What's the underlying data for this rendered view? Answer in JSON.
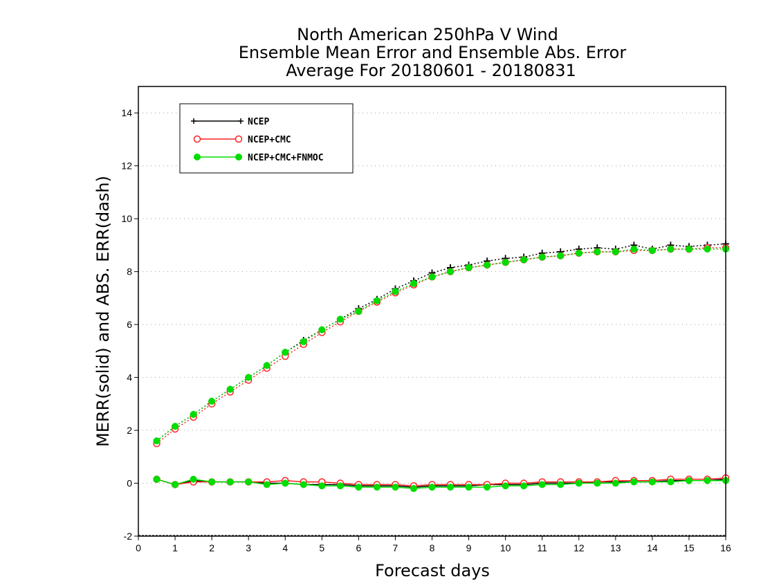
{
  "chart_data": {
    "type": "line",
    "title": [
      "North American 250hPa V Wind",
      "Ensemble Mean Error and Ensemble Abs. Error",
      "Average For 20180601 - 20180831"
    ],
    "xlabel": "Forecast days",
    "ylabel": "MERR(solid) and ABS. ERR(dash)",
    "xlim": [
      0,
      16
    ],
    "ylim": [
      -2,
      15
    ],
    "xticks": [
      "0",
      "1",
      "2",
      "3",
      "4",
      "5",
      "6",
      "7",
      "8",
      "9",
      "10",
      "11",
      "12",
      "13",
      "14",
      "15",
      "16"
    ],
    "yticks": [
      "-2",
      "0",
      "2",
      "4",
      "6",
      "8",
      "10",
      "12",
      "14"
    ],
    "grid": true,
    "legend_position": "top-left",
    "x": [
      0.5,
      1,
      1.5,
      2,
      2.5,
      3,
      3.5,
      4,
      4.5,
      5,
      5.5,
      6,
      6.5,
      7,
      7.5,
      8,
      8.5,
      9,
      9.5,
      10,
      10.5,
      11,
      11.5,
      12,
      12.5,
      13,
      13.5,
      14,
      14.5,
      15,
      15.5,
      16
    ],
    "series": [
      {
        "name": "NCEP",
        "color": "#000000",
        "marker": "plus",
        "abs_error": [
          1.6,
          2.15,
          2.6,
          3.1,
          3.55,
          4.0,
          4.45,
          4.95,
          5.4,
          5.8,
          6.2,
          6.6,
          6.95,
          7.35,
          7.65,
          7.95,
          8.15,
          8.25,
          8.4,
          8.5,
          8.55,
          8.7,
          8.75,
          8.85,
          8.9,
          8.85,
          9.0,
          8.85,
          9.0,
          8.95,
          9.0,
          9.05
        ],
        "mean_error": [
          0.15,
          -0.05,
          0.1,
          0.05,
          0.05,
          0.05,
          0.0,
          0.0,
          -0.05,
          -0.05,
          -0.05,
          -0.1,
          -0.1,
          -0.1,
          -0.15,
          -0.1,
          -0.1,
          -0.1,
          -0.05,
          -0.05,
          -0.05,
          0.0,
          0.0,
          0.0,
          0.05,
          0.05,
          0.05,
          0.05,
          0.1,
          0.1,
          0.1,
          0.15
        ]
      },
      {
        "name": "NCEP+CMC",
        "color": "#ff2020",
        "marker": "open-circle",
        "abs_error": [
          1.5,
          2.05,
          2.5,
          3.0,
          3.45,
          3.9,
          4.35,
          4.8,
          5.25,
          5.7,
          6.1,
          6.5,
          6.85,
          7.2,
          7.5,
          7.8,
          8.0,
          8.15,
          8.25,
          8.35,
          8.45,
          8.55,
          8.6,
          8.7,
          8.75,
          8.75,
          8.8,
          8.8,
          8.85,
          8.85,
          8.9,
          8.9
        ],
        "mean_error": [
          0.15,
          -0.05,
          0.05,
          0.05,
          0.05,
          0.05,
          0.05,
          0.1,
          0.05,
          0.05,
          0.0,
          -0.05,
          -0.05,
          -0.05,
          -0.1,
          -0.05,
          -0.05,
          -0.05,
          -0.05,
          0.0,
          0.0,
          0.05,
          0.05,
          0.05,
          0.05,
          0.1,
          0.1,
          0.1,
          0.15,
          0.15,
          0.15,
          0.2
        ]
      },
      {
        "name": "NCEP+CMC+FNMOC",
        "color": "#00dd00",
        "marker": "filled-circle",
        "abs_error": [
          1.6,
          2.15,
          2.6,
          3.1,
          3.55,
          4.0,
          4.45,
          4.95,
          5.35,
          5.8,
          6.2,
          6.5,
          6.9,
          7.25,
          7.55,
          7.8,
          8.0,
          8.15,
          8.25,
          8.35,
          8.45,
          8.55,
          8.6,
          8.7,
          8.75,
          8.75,
          8.85,
          8.8,
          8.85,
          8.85,
          8.85,
          8.85
        ],
        "mean_error": [
          0.15,
          -0.05,
          0.15,
          0.05,
          0.05,
          0.05,
          -0.05,
          0.0,
          -0.05,
          -0.1,
          -0.1,
          -0.15,
          -0.15,
          -0.15,
          -0.2,
          -0.15,
          -0.15,
          -0.15,
          -0.15,
          -0.1,
          -0.1,
          -0.05,
          -0.05,
          0.0,
          0.0,
          0.0,
          0.05,
          0.05,
          0.05,
          0.1,
          0.1,
          0.1
        ]
      }
    ]
  }
}
